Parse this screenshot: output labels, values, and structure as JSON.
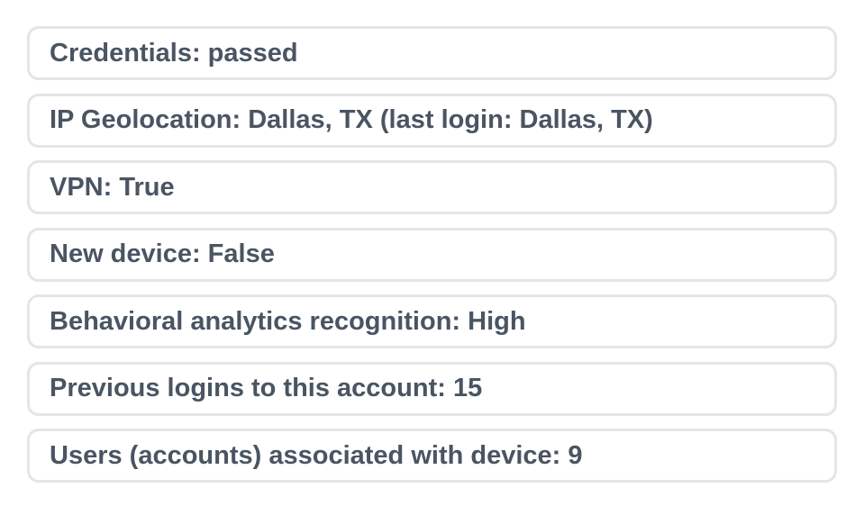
{
  "items": [
    {
      "label": "Credentials: passed"
    },
    {
      "label": "IP Geolocation: Dallas, TX (last login: Dallas, TX)"
    },
    {
      "label": "VPN: True"
    },
    {
      "label": "New device: False"
    },
    {
      "label": "Behavioral analytics recognition: High"
    },
    {
      "label": "Previous logins to this account: 15"
    },
    {
      "label": "Users (accounts) associated with device: 9"
    }
  ],
  "colors": {
    "border": "#e3e5e8",
    "text": "#4a5563"
  }
}
